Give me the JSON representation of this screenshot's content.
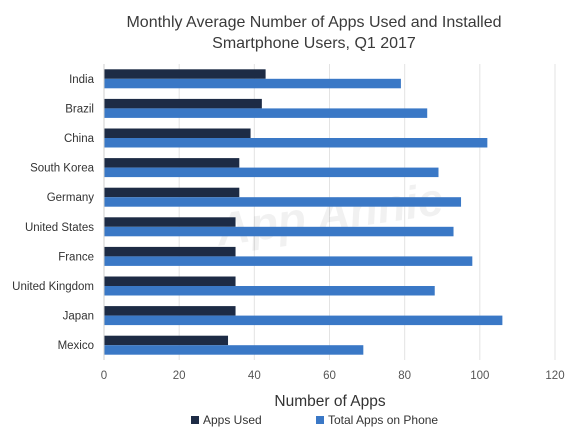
{
  "chart_data": {
    "type": "bar",
    "orientation": "horizontal",
    "title": [
      "Monthly Average Number of Apps Used and Installed",
      "Smartphone Users, Q1 2017"
    ],
    "xlabel": "Number of Apps",
    "ylabel": "",
    "xlim": [
      0,
      120
    ],
    "xticks": [
      0,
      20,
      40,
      60,
      80,
      100,
      120
    ],
    "grid": true,
    "legend_position": "bottom-center",
    "categories": [
      "India",
      "Brazil",
      "China",
      "South Korea",
      "Germany",
      "United States",
      "France",
      "United Kingdom",
      "Japan",
      "Mexico"
    ],
    "series": [
      {
        "name": "Apps Used",
        "color": "#1d2b45",
        "values": [
          43,
          42,
          39,
          36,
          36,
          35,
          35,
          35,
          35,
          33
        ]
      },
      {
        "name": "Total Apps on Phone",
        "color": "#3a78c6",
        "values": [
          79,
          86,
          102,
          89,
          95,
          93,
          98,
          88,
          106,
          69
        ]
      }
    ],
    "watermark": "App Annie"
  }
}
